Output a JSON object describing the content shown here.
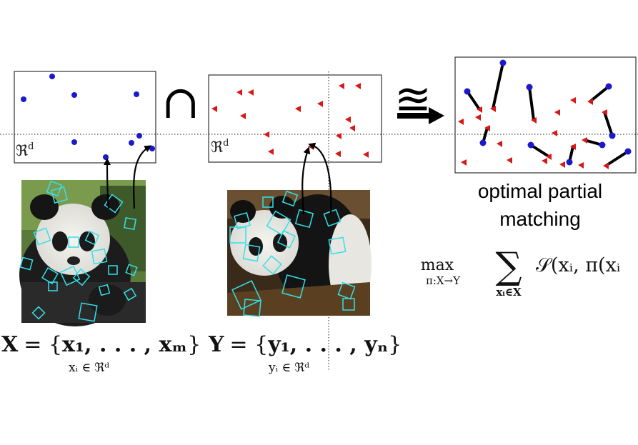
{
  "feature_space_label": "ℜ",
  "feature_space_sup": "d",
  "operator_intersect": "∩",
  "operator_approx": "≊",
  "caption": {
    "line1": "optimal partial",
    "line2": "matching"
  },
  "set_x": {
    "lhs": "X",
    "eq": "= {",
    "elems": "x₁, . . . , xₘ",
    "close": "}",
    "sub": "xᵢ ∈ ℜᵈ"
  },
  "set_y": {
    "lhs": "Y",
    "eq": "= {",
    "elems": "y₁, . . . , yₙ",
    "close": "}",
    "sub": "yᵢ ∈ ℜᵈ"
  },
  "objective": {
    "max": "max",
    "max_sub": "π:X→Y",
    "sum": "∑",
    "sum_sub": "xᵢ∈X",
    "body": "𝒮(xᵢ, π(xᵢ"
  },
  "colors": {
    "x_points": "#1a1acc",
    "y_points": "#d81818",
    "keypoint_box": "#33e0e8",
    "match_line": "#000000",
    "frame": "#333333"
  }
}
